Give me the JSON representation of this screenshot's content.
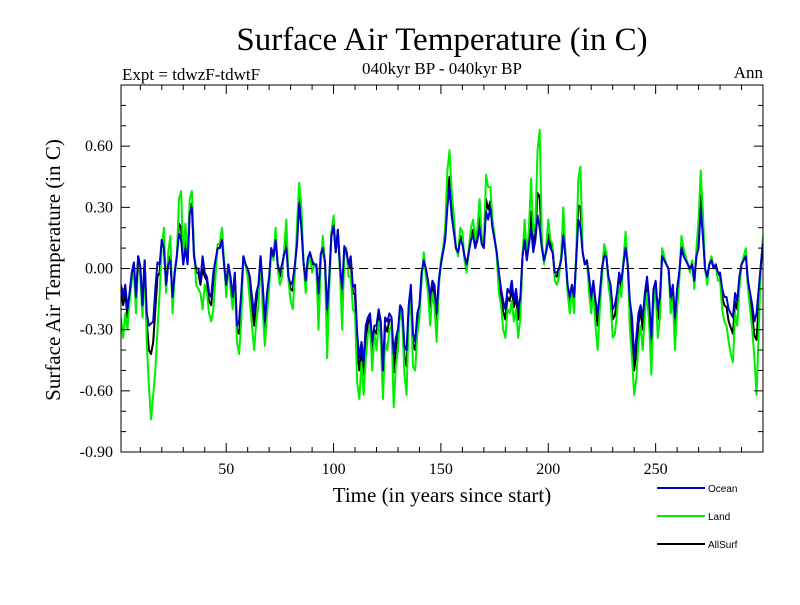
{
  "chart_data": {
    "type": "line",
    "title": "Surface Air Temperature (in C)",
    "subtitle": "040kyr BP - 040kyr BP",
    "experiment_label": "Expt = tdwzF-tdwtF",
    "season_label": "Ann",
    "xlabel": "Time (in years since start)",
    "ylabel": "Surface Air Temperature (in C)",
    "xlim": [
      1,
      300
    ],
    "ylim": [
      -0.9,
      0.9
    ],
    "x_ticks": [
      50,
      100,
      150,
      200,
      250
    ],
    "x_tick_labels": [
      "50",
      "100",
      "150",
      "200",
      "250"
    ],
    "y_ticks": [
      -0.9,
      -0.6,
      -0.3,
      0.0,
      0.3,
      0.6
    ],
    "y_tick_labels": [
      "-0.90",
      "-0.60",
      "-0.30",
      "0.00",
      "0.30",
      "0.60"
    ],
    "zero_line": "dashed",
    "grid": false,
    "legend_position": "bottom-right",
    "x_start": 1,
    "x_step": 1,
    "series": [
      {
        "name": "Ocean",
        "color": "#0000cc",
        "values": [
          -0.08,
          -0.14,
          -0.08,
          -0.2,
          -0.12,
          -0.02,
          0.03,
          -0.14,
          0.06,
          0.01,
          -0.18,
          0.04,
          -0.22,
          -0.28,
          -0.27,
          -0.26,
          -0.1,
          0.03,
          0.02,
          0.14,
          0.1,
          -0.08,
          0.02,
          0.04,
          -0.14,
          -0.02,
          0.06,
          0.17,
          0.14,
          0.02,
          0.1,
          0.02,
          0.27,
          0.3,
          0.06,
          0.0,
          0.0,
          -0.06,
          0.06,
          -0.02,
          -0.04,
          -0.12,
          -0.14,
          -0.02,
          0.04,
          0.1,
          0.1,
          0.14,
          0.02,
          -0.08,
          0.02,
          -0.04,
          -0.14,
          -0.02,
          -0.28,
          -0.26,
          -0.12,
          0.06,
          0.02,
          0.0,
          -0.04,
          -0.14,
          -0.22,
          -0.12,
          -0.08,
          0.06,
          -0.08,
          -0.26,
          -0.12,
          -0.04,
          0.1,
          0.06,
          0.14,
          0.02,
          -0.02,
          0.02,
          0.07,
          0.1,
          -0.04,
          -0.08,
          -0.06,
          0.02,
          0.12,
          0.32,
          0.2,
          0.03,
          -0.06,
          0.05,
          0.08,
          0.04,
          0.02,
          0.02,
          -0.12,
          0.07,
          0.1,
          0.03,
          -0.2,
          -0.04,
          0.16,
          0.21,
          0.08,
          0.19,
          0.01,
          -0.1,
          0.11,
          0.08,
          0.02,
          0.06,
          -0.09,
          -0.08,
          -0.32,
          -0.44,
          -0.36,
          -0.46,
          -0.28,
          -0.24,
          -0.22,
          -0.36,
          -0.28,
          -0.28,
          -0.2,
          -0.26,
          -0.5,
          -0.24,
          -0.26,
          -0.22,
          -0.24,
          -0.42,
          -0.34,
          -0.3,
          -0.18,
          -0.2,
          -0.38,
          -0.4,
          -0.18,
          -0.08,
          -0.32,
          -0.36,
          -0.22,
          -0.18,
          -0.02,
          0.04,
          0.0,
          -0.06,
          -0.14,
          -0.06,
          -0.08,
          -0.22,
          -0.06,
          0.02,
          0.08,
          0.14,
          0.3,
          0.4,
          0.26,
          0.18,
          0.1,
          0.08,
          0.14,
          0.12,
          0.06,
          0.02,
          0.08,
          0.14,
          0.16,
          0.1,
          0.14,
          0.2,
          0.12,
          0.1,
          0.28,
          0.24,
          0.3,
          0.2,
          0.14,
          0.08,
          -0.02,
          -0.1,
          -0.16,
          -0.2,
          -0.1,
          -0.12,
          -0.06,
          -0.16,
          -0.1,
          -0.2,
          -0.14,
          0.06,
          0.14,
          0.04,
          0.12,
          0.2,
          0.08,
          0.14,
          0.26,
          0.2,
          0.1,
          0.04,
          0.08,
          0.14,
          0.1,
          0.08,
          -0.02,
          -0.02,
          0.0,
          0.04,
          0.16,
          0.06,
          -0.08,
          -0.14,
          -0.08,
          -0.14,
          0.04,
          0.24,
          0.2,
          0.08,
          0.02,
          0.04,
          -0.04,
          -0.14,
          -0.06,
          -0.16,
          -0.22,
          -0.12,
          0.0,
          0.06,
          0.06,
          -0.04,
          -0.08,
          -0.2,
          -0.18,
          -0.12,
          -0.02,
          -0.06,
          0.02,
          0.1,
          0.02,
          -0.16,
          -0.24,
          -0.44,
          -0.34,
          -0.22,
          -0.18,
          -0.24,
          -0.12,
          -0.04,
          -0.16,
          -0.34,
          -0.1,
          -0.06,
          -0.2,
          -0.14,
          0.06,
          0.04,
          0.02,
          0.0,
          -0.14,
          -0.08,
          -0.24,
          -0.1,
          -0.02,
          0.1,
          0.06,
          0.04,
          0.02,
          0.0,
          0.02,
          -0.06,
          0.06,
          0.1,
          0.3,
          0.16,
          0.0,
          -0.04,
          0.02,
          0.04,
          0.0,
          0.02,
          -0.02,
          -0.02,
          -0.1,
          -0.14,
          -0.14,
          -0.2,
          -0.22,
          -0.24,
          -0.12,
          -0.16,
          -0.04,
          0.02,
          0.04,
          0.06,
          -0.06,
          -0.12,
          -0.18,
          -0.26,
          -0.22,
          -0.1,
          0.02,
          0.12,
          0.14,
          0.12,
          0.1,
          0.04,
          0.02
        ]
      },
      {
        "name": "Land",
        "color": "#00ee00",
        "values": [
          -0.24,
          -0.34,
          -0.22,
          -0.3,
          -0.16,
          -0.06,
          -0.02,
          -0.22,
          0.04,
          -0.04,
          -0.24,
          0.02,
          -0.36,
          -0.58,
          -0.74,
          -0.62,
          -0.5,
          -0.3,
          -0.12,
          0.1,
          0.2,
          -0.12,
          0.08,
          0.16,
          -0.22,
          -0.04,
          0.06,
          0.34,
          0.38,
          0.06,
          0.22,
          0.06,
          0.34,
          0.38,
          0.1,
          -0.08,
          -0.1,
          -0.12,
          -0.2,
          -0.08,
          -0.12,
          -0.22,
          -0.26,
          -0.2,
          -0.04,
          0.12,
          0.12,
          0.2,
          0.04,
          -0.14,
          0.02,
          -0.1,
          -0.2,
          -0.06,
          -0.36,
          -0.42,
          -0.26,
          0.06,
          0.02,
          -0.04,
          -0.16,
          -0.28,
          -0.4,
          -0.26,
          -0.18,
          0.06,
          -0.2,
          -0.38,
          -0.22,
          -0.1,
          0.1,
          0.04,
          0.2,
          0.0,
          -0.08,
          -0.04,
          0.1,
          0.24,
          -0.06,
          -0.16,
          -0.2,
          -0.02,
          0.22,
          0.42,
          0.3,
          0.04,
          -0.12,
          0.02,
          0.06,
          -0.02,
          0.02,
          0.0,
          -0.3,
          0.02,
          0.16,
          0.02,
          -0.44,
          -0.1,
          0.18,
          0.26,
          0.08,
          0.18,
          -0.02,
          -0.3,
          0.06,
          0.1,
          -0.04,
          -0.04,
          -0.2,
          -0.22,
          -0.56,
          -0.64,
          -0.46,
          -0.62,
          -0.44,
          -0.32,
          -0.28,
          -0.5,
          -0.32,
          -0.4,
          -0.26,
          -0.34,
          -0.64,
          -0.36,
          -0.4,
          -0.3,
          -0.28,
          -0.68,
          -0.48,
          -0.4,
          -0.2,
          -0.26,
          -0.52,
          -0.62,
          -0.24,
          -0.16,
          -0.48,
          -0.5,
          -0.32,
          -0.24,
          -0.06,
          0.08,
          -0.04,
          -0.12,
          -0.28,
          -0.12,
          -0.18,
          -0.36,
          -0.1,
          0.04,
          0.1,
          0.2,
          0.48,
          0.58,
          0.38,
          0.26,
          0.1,
          0.06,
          0.2,
          0.18,
          0.04,
          -0.02,
          0.1,
          0.2,
          0.24,
          0.14,
          0.2,
          0.34,
          0.16,
          0.12,
          0.46,
          0.4,
          0.4,
          0.24,
          0.16,
          0.06,
          -0.12,
          -0.18,
          -0.3,
          -0.34,
          -0.2,
          -0.22,
          -0.16,
          -0.26,
          -0.2,
          -0.34,
          -0.24,
          0.06,
          0.24,
          0.06,
          0.2,
          0.44,
          0.18,
          0.22,
          0.58,
          0.68,
          0.14,
          0.02,
          0.1,
          0.24,
          0.14,
          0.12,
          -0.06,
          -0.08,
          -0.04,
          0.06,
          0.3,
          0.08,
          -0.12,
          -0.22,
          -0.1,
          -0.22,
          0.08,
          0.44,
          0.5,
          0.08,
          0.02,
          0.04,
          -0.12,
          -0.22,
          -0.12,
          -0.28,
          -0.4,
          -0.2,
          -0.04,
          0.12,
          0.08,
          -0.08,
          -0.16,
          -0.34,
          -0.32,
          -0.22,
          -0.08,
          -0.14,
          0.04,
          0.18,
          0.02,
          -0.3,
          -0.44,
          -0.62,
          -0.54,
          -0.36,
          -0.28,
          -0.4,
          -0.22,
          -0.12,
          -0.28,
          -0.52,
          -0.18,
          -0.1,
          -0.34,
          -0.24,
          0.1,
          0.06,
          0.02,
          0.0,
          -0.22,
          -0.14,
          -0.4,
          -0.2,
          -0.06,
          0.16,
          0.1,
          0.06,
          0.02,
          -0.02,
          0.04,
          -0.1,
          0.1,
          0.24,
          0.48,
          0.28,
          0.0,
          -0.08,
          0.02,
          0.06,
          0.0,
          0.02,
          -0.06,
          -0.06,
          -0.2,
          -0.26,
          -0.28,
          -0.36,
          -0.42,
          -0.46,
          -0.22,
          -0.28,
          -0.1,
          0.02,
          0.06,
          0.1,
          -0.1,
          -0.2,
          -0.3,
          -0.44,
          -0.62,
          -0.3,
          0.0,
          0.16,
          0.18,
          0.14,
          0.1,
          0.02,
          0.0
        ]
      },
      {
        "name": "AllSurf",
        "color": "#000000",
        "values": [
          -0.12,
          -0.18,
          -0.12,
          -0.24,
          -0.13,
          -0.03,
          0.02,
          -0.16,
          0.06,
          0.0,
          -0.2,
          0.04,
          -0.26,
          -0.4,
          -0.42,
          -0.36,
          -0.2,
          -0.04,
          -0.02,
          0.14,
          0.12,
          -0.1,
          0.04,
          0.06,
          -0.16,
          -0.02,
          0.06,
          0.22,
          0.2,
          0.02,
          0.14,
          0.03,
          0.29,
          0.32,
          0.07,
          -0.02,
          -0.02,
          -0.08,
          0.0,
          -0.04,
          -0.06,
          -0.16,
          -0.18,
          -0.06,
          0.02,
          0.1,
          0.1,
          0.16,
          0.03,
          -0.1,
          0.02,
          -0.06,
          -0.16,
          -0.03,
          -0.3,
          -0.32,
          -0.16,
          0.06,
          0.02,
          -0.01,
          -0.08,
          -0.18,
          -0.28,
          -0.16,
          -0.11,
          0.06,
          -0.11,
          -0.3,
          -0.15,
          -0.06,
          0.1,
          0.05,
          0.16,
          0.01,
          -0.04,
          0.0,
          0.08,
          0.14,
          -0.05,
          -0.1,
          -0.11,
          0.01,
          0.15,
          0.35,
          0.23,
          0.03,
          -0.08,
          0.04,
          0.07,
          0.02,
          0.02,
          0.01,
          -0.18,
          0.05,
          0.12,
          0.03,
          -0.28,
          -0.06,
          0.17,
          0.23,
          0.08,
          0.19,
          0.0,
          -0.17,
          0.09,
          0.09,
          0.0,
          0.03,
          -0.12,
          -0.13,
          -0.41,
          -0.5,
          -0.4,
          -0.52,
          -0.34,
          -0.27,
          -0.24,
          -0.4,
          -0.3,
          -0.32,
          -0.22,
          -0.29,
          -0.55,
          -0.28,
          -0.31,
          -0.25,
          -0.25,
          -0.51,
          -0.39,
          -0.33,
          -0.19,
          -0.22,
          -0.43,
          -0.48,
          -0.2,
          -0.11,
          -0.37,
          -0.4,
          -0.25,
          -0.2,
          -0.03,
          0.05,
          -0.01,
          -0.08,
          -0.19,
          -0.08,
          -0.12,
          -0.27,
          -0.07,
          0.03,
          0.09,
          0.16,
          0.37,
          0.45,
          0.3,
          0.21,
          0.1,
          0.07,
          0.16,
          0.14,
          0.05,
          0.01,
          0.09,
          0.16,
          0.19,
          0.11,
          0.16,
          0.25,
          0.13,
          0.11,
          0.34,
          0.29,
          0.33,
          0.21,
          0.15,
          0.07,
          -0.05,
          -0.13,
          -0.21,
          -0.25,
          -0.14,
          -0.16,
          -0.1,
          -0.19,
          -0.14,
          -0.25,
          -0.18,
          0.06,
          0.18,
          0.05,
          0.15,
          0.28,
          0.11,
          0.17,
          0.37,
          0.35,
          0.12,
          0.03,
          0.09,
          0.17,
          0.12,
          0.09,
          -0.03,
          -0.04,
          -0.01,
          0.05,
          0.21,
          0.07,
          -0.1,
          -0.17,
          -0.09,
          -0.17,
          0.06,
          0.31,
          0.3,
          0.08,
          0.02,
          0.04,
          -0.07,
          -0.17,
          -0.08,
          -0.2,
          -0.28,
          -0.15,
          -0.01,
          0.08,
          0.07,
          -0.05,
          -0.11,
          -0.25,
          -0.23,
          -0.16,
          -0.04,
          -0.09,
          0.03,
          0.13,
          0.02,
          -0.21,
          -0.31,
          -0.5,
          -0.41,
          -0.27,
          -0.21,
          -0.3,
          -0.16,
          -0.07,
          -0.2,
          -0.4,
          -0.13,
          -0.07,
          -0.25,
          -0.18,
          0.07,
          0.05,
          0.02,
          0.0,
          -0.17,
          -0.1,
          -0.29,
          -0.14,
          -0.03,
          0.12,
          0.08,
          0.05,
          0.02,
          -0.01,
          0.03,
          -0.07,
          0.07,
          0.15,
          0.36,
          0.2,
          0.0,
          -0.05,
          0.02,
          0.05,
          0.0,
          0.02,
          -0.03,
          -0.03,
          -0.14,
          -0.18,
          -0.19,
          -0.26,
          -0.29,
          -0.32,
          -0.16,
          -0.2,
          -0.06,
          0.02,
          0.05,
          0.08,
          -0.08,
          -0.15,
          -0.23,
          -0.33,
          -0.35,
          -0.18,
          0.01,
          0.14,
          0.16,
          0.13,
          0.1,
          0.03,
          0.01
        ]
      }
    ]
  }
}
